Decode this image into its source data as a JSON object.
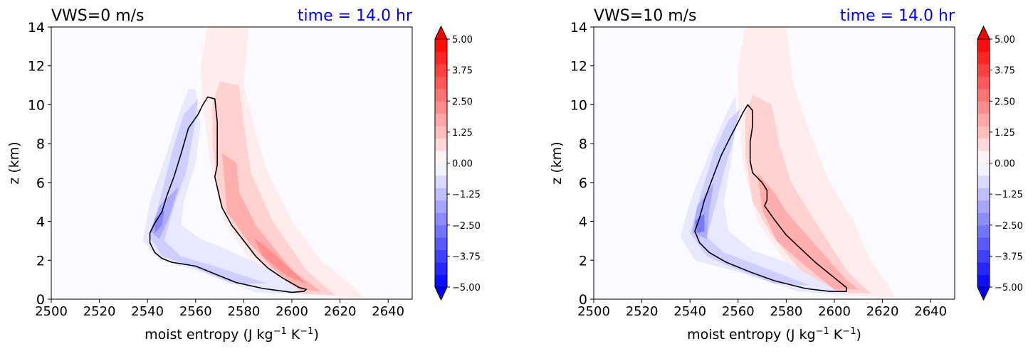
{
  "figure": {
    "colorbar_colors": {
      "under": "#0000ff",
      "over": "#ff0000",
      "neutral": "#ffffff",
      "negative_end": "#0000ff",
      "positive_end": "#ff0000"
    },
    "contour_color": "#000000",
    "title_color_left": "#000000",
    "title_color_right": "#0000ff"
  },
  "chart_data": [
    {
      "type": "heatmap",
      "title_left": "VWS=0 m/s",
      "title_right": "time = 14.0 hr",
      "xlabel": "moist entropy (J kg",
      "xlabel_sup1": "−1",
      "xlabel_mid": " K",
      "xlabel_sup2": "−1",
      "xlabel_end": ")",
      "ylabel": "z (km)",
      "xlim": [
        2500,
        2650
      ],
      "ylim": [
        0,
        14
      ],
      "x_ticks": [
        2500,
        2520,
        2540,
        2560,
        2580,
        2600,
        2620,
        2640
      ],
      "y_ticks": [
        0,
        2,
        4,
        6,
        8,
        10,
        12,
        14
      ],
      "colorbar": {
        "range": [
          -5,
          5
        ],
        "ticks": [
          "5.00",
          "3.75",
          "2.50",
          "1.25",
          "0.00",
          "−1.25",
          "−2.50",
          "−3.75",
          "−5.00"
        ],
        "extend": "both"
      },
      "background_value": -0.1,
      "regions": [
        {
          "value": 0.35,
          "points": [
            [
              2565,
              14
            ],
            [
              2582,
              14
            ],
            [
              2580,
              11
            ],
            [
              2585,
              8.5
            ],
            [
              2590,
              6.5
            ],
            [
              2600,
              4
            ],
            [
              2612,
              2
            ],
            [
              2622,
              1
            ],
            [
              2630,
              0.1
            ],
            [
              2602,
              0.2
            ],
            [
              2585,
              1.5
            ],
            [
              2572,
              4
            ],
            [
              2566,
              7
            ],
            [
              2563,
              10
            ],
            [
              2562,
              12
            ]
          ]
        },
        {
          "value": 0.9,
          "points": [
            [
              2570,
              11.2
            ],
            [
              2578,
              11
            ],
            [
              2580,
              9
            ],
            [
              2583,
              6.5
            ],
            [
              2592,
              4
            ],
            [
              2606,
              1.5
            ],
            [
              2618,
              0.2
            ],
            [
              2600,
              0.3
            ],
            [
              2588,
              1.8
            ],
            [
              2578,
              3.3
            ],
            [
              2570,
              5
            ],
            [
              2567,
              8
            ],
            [
              2567,
              10
            ]
          ]
        },
        {
          "value": 1.6,
          "points": [
            [
              2571,
              7.5
            ],
            [
              2577,
              7
            ],
            [
              2578,
              5.5
            ],
            [
              2585,
              3.8
            ],
            [
              2600,
              1.5
            ],
            [
              2612,
              0.4
            ],
            [
              2603,
              0.5
            ],
            [
              2592,
              1.6
            ],
            [
              2581,
              3.1
            ],
            [
              2573,
              4.5
            ]
          ]
        },
        {
          "value": 2.2,
          "points": [
            [
              2584,
              3.2
            ],
            [
              2592,
              2.4
            ],
            [
              2606,
              0.8
            ],
            [
              2598,
              1.2
            ],
            [
              2588,
              2.2
            ]
          ]
        },
        {
          "value": -0.45,
          "points": [
            [
              2560,
              10.8
            ],
            [
              2562,
              9
            ],
            [
              2560,
              7
            ],
            [
              2555,
              5
            ],
            [
              2554,
              3.8
            ],
            [
              2562,
              3.1
            ],
            [
              2572,
              2.6
            ],
            [
              2590,
              1.6
            ],
            [
              2605,
              0.25
            ],
            [
              2585,
              0.35
            ],
            [
              2560,
              1.5
            ],
            [
              2545,
              2
            ],
            [
              2538,
              3
            ],
            [
              2541,
              5
            ],
            [
              2548,
              7.5
            ],
            [
              2553,
              9.5
            ],
            [
              2557,
              10.8
            ]
          ]
        },
        {
          "value": -0.95,
          "points": [
            [
              2561,
              10.3
            ],
            [
              2559,
              8.5
            ],
            [
              2556,
              6.5
            ],
            [
              2551,
              4.8
            ],
            [
              2547,
              3
            ],
            [
              2554,
              2.2
            ],
            [
              2568,
              1.7
            ],
            [
              2590,
              0.8
            ],
            [
              2575,
              0.8
            ],
            [
              2558,
              1.7
            ],
            [
              2546,
              2.2
            ],
            [
              2541,
              3.2
            ],
            [
              2545,
              5
            ],
            [
              2550,
              7.5
            ],
            [
              2555,
              9.5
            ]
          ]
        },
        {
          "value": -1.6,
          "points": [
            [
              2553,
              5.8
            ],
            [
              2549,
              4.2
            ],
            [
              2545,
              3.1
            ],
            [
              2541,
              3.5
            ],
            [
              2545,
              4.8
            ]
          ]
        },
        {
          "value": -2.4,
          "points": [
            [
              2547,
              4.6
            ],
            [
              2546,
              3.8
            ],
            [
              2543,
              3.4
            ],
            [
              2543,
              4.1
            ]
          ]
        }
      ],
      "contour": [
        [
          2565,
          10.4
        ],
        [
          2568,
          10.3
        ],
        [
          2569,
          9.1
        ],
        [
          2569,
          7.9
        ],
        [
          2569,
          6.9
        ],
        [
          2568,
          6.3
        ],
        [
          2570,
          5.2
        ],
        [
          2571,
          4.7
        ],
        [
          2575,
          3.8
        ],
        [
          2580,
          3
        ],
        [
          2585,
          2.2
        ],
        [
          2590,
          1.6
        ],
        [
          2596,
          1.1
        ],
        [
          2603,
          0.6
        ],
        [
          2606,
          0.5
        ],
        [
          2605,
          0.4
        ],
        [
          2600,
          0.35
        ],
        [
          2588,
          0.55
        ],
        [
          2577,
          0.85
        ],
        [
          2570,
          1.2
        ],
        [
          2560,
          1.7
        ],
        [
          2550,
          1.9
        ],
        [
          2546,
          2.1
        ],
        [
          2543,
          2.4
        ],
        [
          2541,
          2.9
        ],
        [
          2541,
          3.4
        ],
        [
          2543,
          3.9
        ],
        [
          2546,
          4.5
        ],
        [
          2548,
          5.3
        ],
        [
          2551,
          6.3
        ],
        [
          2554,
          7.5
        ],
        [
          2557,
          8.8
        ],
        [
          2561,
          9.5
        ],
        [
          2563,
          10
        ]
      ]
    },
    {
      "type": "heatmap",
      "title_left": "VWS=10 m/s",
      "title_right": "time = 14.0 hr",
      "xlabel": "moist entropy (J kg",
      "xlabel_sup1": "−1",
      "xlabel_mid": " K",
      "xlabel_sup2": "−1",
      "xlabel_end": ")",
      "ylabel": "z (km)",
      "xlim": [
        2500,
        2650
      ],
      "ylim": [
        0,
        14
      ],
      "x_ticks": [
        2500,
        2520,
        2540,
        2560,
        2580,
        2600,
        2620,
        2640
      ],
      "y_ticks": [
        0,
        2,
        4,
        6,
        8,
        10,
        12,
        14
      ],
      "colorbar": {
        "range": [
          -5,
          5
        ],
        "ticks": [
          "5.00",
          "3.75",
          "2.50",
          "1.25",
          "0.00",
          "−1.25",
          "−2.50",
          "−3.75",
          "−5.00"
        ],
        "extend": "both"
      },
      "background_value": -0.1,
      "regions": [
        {
          "value": 0.35,
          "points": [
            [
              2563,
              14
            ],
            [
              2580,
              14
            ],
            [
              2583,
              11
            ],
            [
              2590,
              8.5
            ],
            [
              2598,
              6
            ],
            [
              2608,
              4
            ],
            [
              2615,
              2
            ],
            [
              2622,
              0.8
            ],
            [
              2625,
              0.1
            ],
            [
              2600,
              0.2
            ],
            [
              2582,
              1.5
            ],
            [
              2568,
              4
            ],
            [
              2562,
              7
            ],
            [
              2560,
              10
            ],
            [
              2560,
              12
            ]
          ]
        },
        {
          "value": 0.9,
          "points": [
            [
              2566,
              10.5
            ],
            [
              2574,
              10
            ],
            [
              2577,
              8
            ],
            [
              2582,
              6
            ],
            [
              2592,
              4
            ],
            [
              2605,
              1.5
            ],
            [
              2615,
              0.3
            ],
            [
              2598,
              0.3
            ],
            [
              2585,
              1.6
            ],
            [
              2574,
              3.3
            ],
            [
              2566,
              5
            ],
            [
              2563,
              7.5
            ],
            [
              2563,
              9.5
            ]
          ]
        },
        {
          "value": 1.6,
          "points": [
            [
              2568,
              6.5
            ],
            [
              2575,
              5.5
            ],
            [
              2580,
              4.5
            ],
            [
              2592,
              2.8
            ],
            [
              2605,
              1
            ],
            [
              2610,
              0.5
            ],
            [
              2600,
              0.5
            ],
            [
              2588,
              1.7
            ],
            [
              2576,
              3
            ],
            [
              2570,
              4.6
            ]
          ]
        },
        {
          "value": -0.45,
          "points": [
            [
              2559,
              10.5
            ],
            [
              2559,
              9
            ],
            [
              2557,
              7
            ],
            [
              2554,
              5
            ],
            [
              2556,
              3.5
            ],
            [
              2566,
              2.5
            ],
            [
              2580,
              1.9
            ],
            [
              2600,
              0.5
            ],
            [
              2605,
              0.2
            ],
            [
              2585,
              0.4
            ],
            [
              2560,
              1.4
            ],
            [
              2542,
              2
            ],
            [
              2536,
              3.2
            ],
            [
              2540,
              5
            ],
            [
              2548,
              7.5
            ],
            [
              2555,
              9.5
            ]
          ]
        },
        {
          "value": -0.95,
          "points": [
            [
              2561,
              9.8
            ],
            [
              2558,
              8.2
            ],
            [
              2554,
              6.5
            ],
            [
              2551,
              5
            ],
            [
              2547,
              3.2
            ],
            [
              2554,
              2.4
            ],
            [
              2567,
              1.8
            ],
            [
              2590,
              0.7
            ],
            [
              2575,
              0.8
            ],
            [
              2558,
              1.6
            ],
            [
              2547,
              2.2
            ],
            [
              2540,
              3.4
            ],
            [
              2544,
              5.2
            ],
            [
              2550,
              7.6
            ],
            [
              2556,
              9.2
            ]
          ]
        },
        {
          "value": -1.6,
          "points": [
            [
              2550,
              6
            ],
            [
              2548,
              4.6
            ],
            [
              2547,
              3.1
            ],
            [
              2541,
              3.4
            ],
            [
              2543,
              4.8
            ]
          ]
        },
        {
          "value": -2.6,
          "points": [
            [
              2546,
              4.4
            ],
            [
              2546,
              3.5
            ],
            [
              2543,
              3.4
            ],
            [
              2542,
              4
            ]
          ]
        }
      ],
      "contour": [
        [
          2564,
          10
        ],
        [
          2566,
          9.7
        ],
        [
          2566,
          8.9
        ],
        [
          2565,
          8.1
        ],
        [
          2565,
          7.1
        ],
        [
          2566,
          6.5
        ],
        [
          2570,
          6
        ],
        [
          2572,
          5.6
        ],
        [
          2572,
          5.1
        ],
        [
          2571,
          4.8
        ],
        [
          2575,
          4.1
        ],
        [
          2580,
          3.3
        ],
        [
          2586,
          2.6
        ],
        [
          2592,
          1.9
        ],
        [
          2598,
          1.3
        ],
        [
          2603,
          0.8
        ],
        [
          2605,
          0.6
        ],
        [
          2605,
          0.4
        ],
        [
          2598,
          0.4
        ],
        [
          2588,
          0.55
        ],
        [
          2575,
          0.95
        ],
        [
          2565,
          1.4
        ],
        [
          2555,
          1.9
        ],
        [
          2548,
          2.4
        ],
        [
          2544,
          2.9
        ],
        [
          2542,
          3.5
        ],
        [
          2544,
          4.2
        ],
        [
          2546,
          5.1
        ],
        [
          2549,
          6.1
        ],
        [
          2553,
          7.4
        ],
        [
          2557,
          8.4
        ],
        [
          2560,
          9.1
        ],
        [
          2562,
          9.6
        ]
      ]
    }
  ]
}
